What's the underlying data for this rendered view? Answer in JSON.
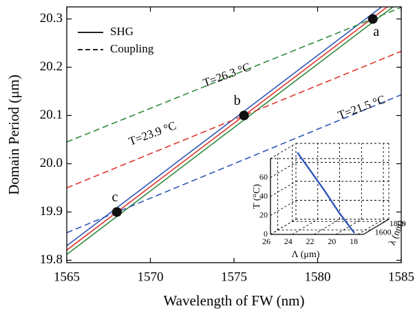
{
  "chart_data": [
    {
      "type": "line",
      "xlabel": "Wavelength of FW (nm)",
      "ylabel": "Domain Period (μm)",
      "xlim": [
        1565,
        1585
      ],
      "xticks": [
        1565,
        1570,
        1575,
        1580,
        1585
      ],
      "ylim": [
        19.795,
        20.325
      ],
      "yticks": [
        19.8,
        19.9,
        {
          "value": 20,
          "label": "20.0"
        },
        20.1,
        20.2,
        20.3
      ],
      "legend_position": "upper left",
      "legend": [
        {
          "name": "SHG",
          "dash": "solid"
        },
        {
          "name": "Coupling",
          "dash": "dashed"
        }
      ],
      "series": [
        {
          "color": "#2d56b5",
          "dash": "solid",
          "x": [
            1565,
            1585
          ],
          "values": [
            19.83,
            20.356
          ]
        },
        {
          "color": "#e0332c",
          "dash": "solid",
          "x": [
            1565,
            1585
          ],
          "values": [
            19.821,
            20.347
          ]
        },
        {
          "color": "#2f8a3a",
          "dash": "solid",
          "x": [
            1565,
            1585
          ],
          "values": [
            19.812,
            20.338
          ]
        },
        {
          "name": "T=26.3 °C",
          "color": "#2f8a3a",
          "dash": "dashed",
          "x": [
            1565,
            1585
          ],
          "values": [
            20.045,
            20.324
          ]
        },
        {
          "name": "T=23.9 °C",
          "color": "#e0332c",
          "dash": "dashed",
          "x": [
            1565,
            1585
          ],
          "values": [
            19.95,
            20.233
          ]
        },
        {
          "name": "T=21.5 °C",
          "color": "#2d56b5",
          "dash": "dashed",
          "x": [
            1565,
            1585
          ],
          "values": [
            19.857,
            20.143
          ]
        }
      ],
      "points": [
        {
          "label": "a",
          "x": 1583.3,
          "y": 20.3
        },
        {
          "label": "b",
          "x": 1575.6,
          "y": 20.1
        },
        {
          "label": "c",
          "x": 1568,
          "y": 19.9
        }
      ]
    },
    {
      "type": "line3d",
      "xlabel": "Λ (μm)",
      "ylabel": "λ (nm)",
      "zlabel": "T (°C)",
      "xlim": [
        26,
        17.5
      ],
      "xticks": [
        26,
        24,
        22,
        20,
        18
      ],
      "ylim": [
        1500,
        1850
      ],
      "yticks": [
        1600,
        1800
      ],
      "zlim": [
        0,
        80
      ],
      "zticks": [
        0,
        20,
        40,
        60
      ],
      "grid": true,
      "series": [
        {
          "color": "#2d56b5",
          "x": [
            25.2,
            23.8,
            22,
            20.3,
            18.53
          ],
          "y": [
            1750,
            1700,
            1640,
            1580,
            1532
          ],
          "z": [
            75,
            60,
            40,
            20,
            0
          ]
        }
      ]
    }
  ]
}
